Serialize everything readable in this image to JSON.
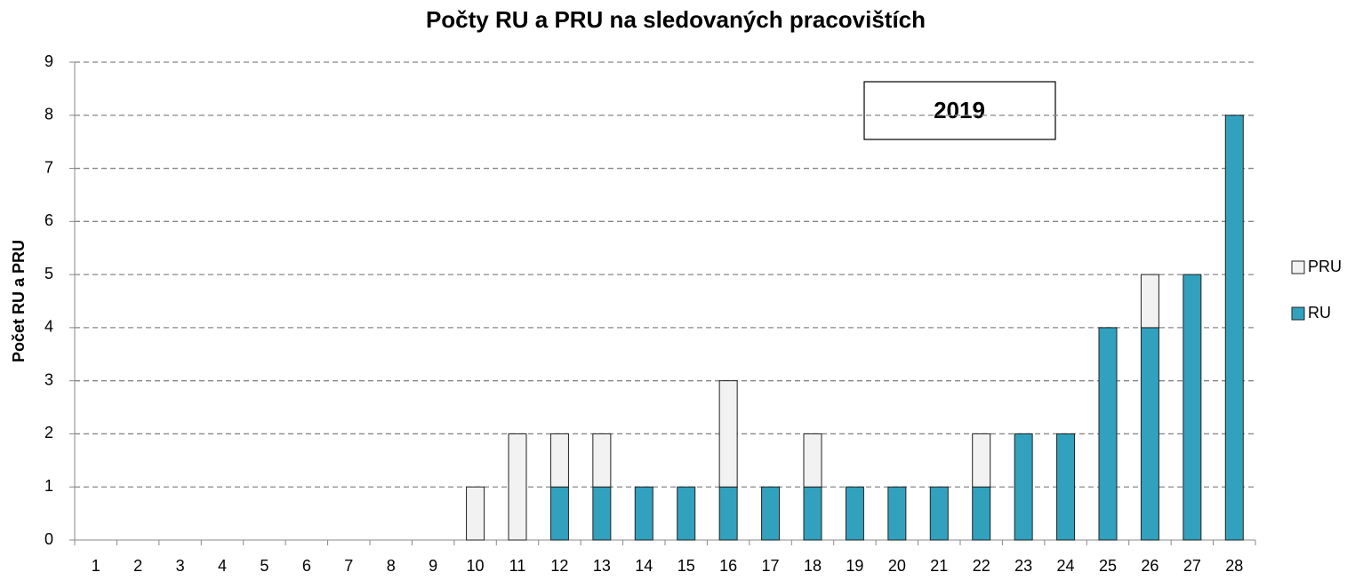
{
  "chart_data": {
    "type": "stacked_bar",
    "title": "Počty RU a PRU na sledovaných pracovištích",
    "y_label": "Počet RU a PRU",
    "annotation": "2019",
    "categories": [
      "1",
      "2",
      "3",
      "4",
      "5",
      "6",
      "7",
      "8",
      "9",
      "10",
      "11",
      "12",
      "13",
      "14",
      "15",
      "16",
      "17",
      "18",
      "19",
      "20",
      "21",
      "22",
      "23",
      "24",
      "25",
      "26",
      "27",
      "28"
    ],
    "series": [
      {
        "name": "RU",
        "color": "#31a1be",
        "values": [
          0,
          0,
          0,
          0,
          0,
          0,
          0,
          0,
          0,
          0,
          0,
          1,
          1,
          1,
          1,
          1,
          1,
          1,
          1,
          1,
          1,
          1,
          2,
          2,
          4,
          4,
          5,
          8
        ]
      },
      {
        "name": "PRU",
        "color": "#f2f2f2",
        "values": [
          0,
          0,
          0,
          0,
          0,
          0,
          0,
          0,
          0,
          1,
          2,
          1,
          1,
          0,
          0,
          2,
          0,
          1,
          0,
          0,
          0,
          1,
          0,
          0,
          0,
          1,
          0,
          0
        ]
      }
    ],
    "ylim": [
      0,
      9
    ],
    "yticks": [
      0,
      1,
      2,
      3,
      4,
      5,
      6,
      7,
      8,
      9
    ],
    "grid": true,
    "legend": "right"
  }
}
